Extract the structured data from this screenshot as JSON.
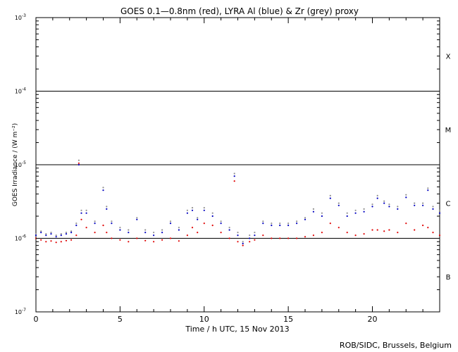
{
  "chart_data": {
    "type": "scatter",
    "title": "GOES 0.1—0.8nm (red), LYRA Al (blue) & Zr (grey) proxy",
    "xlabel": "Time / h UTC, 15 Nov 2013",
    "ylabel": "GOES Irradiance / (W m⁻²)",
    "xlim": [
      0,
      24
    ],
    "ylim": [
      1e-07,
      0.001
    ],
    "yscale": "log",
    "x_ticks": [
      0,
      5,
      10,
      15,
      20
    ],
    "y_ticks": [
      {
        "value": 1e-07,
        "base": "10",
        "exp": "-7"
      },
      {
        "value": 1e-06,
        "base": "10",
        "exp": "-6"
      },
      {
        "value": 1e-05,
        "base": "10",
        "exp": "-5"
      },
      {
        "value": 0.0001,
        "base": "10",
        "exp": "-4"
      },
      {
        "value": 0.001,
        "base": "10",
        "exp": "-3"
      }
    ],
    "flare_class_lines": [
      1e-06,
      1e-05,
      0.0001
    ],
    "flare_classes": [
      {
        "label": "X",
        "y": 0.0003
      },
      {
        "label": "M",
        "y": 3e-05
      },
      {
        "label": "C",
        "y": 3e-06
      },
      {
        "label": "B",
        "y": 3e-07
      }
    ],
    "series": [
      {
        "name": "GOES 0.1—0.8nm",
        "color": "#e00000",
        "x": [
          0.0,
          0.3,
          0.6,
          0.9,
          1.2,
          1.5,
          1.8,
          2.1,
          2.4,
          2.55,
          2.7,
          3.0,
          3.5,
          4.0,
          4.2,
          4.5,
          5.0,
          5.5,
          6.0,
          6.5,
          7.0,
          7.5,
          8.0,
          8.5,
          9.0,
          9.3,
          9.6,
          10.0,
          10.5,
          11.0,
          11.5,
          11.8,
          12.0,
          12.3,
          12.7,
          13.0,
          13.5,
          14.0,
          14.5,
          15.0,
          15.5,
          16.0,
          16.5,
          17.0,
          17.5,
          18.0,
          18.5,
          19.0,
          19.5,
          20.0,
          20.3,
          20.7,
          21.0,
          21.5,
          22.0,
          22.5,
          23.0,
          23.3,
          23.6,
          24.0
        ],
        "y": [
          1e-06,
          9.5e-07,
          9e-07,
          9.2e-07,
          8.8e-07,
          9e-07,
          9.3e-07,
          9.5e-07,
          1.1e-06,
          1.05e-05,
          1.8e-06,
          1.4e-06,
          1.2e-06,
          1.5e-06,
          1.2e-06,
          1e-06,
          9.5e-07,
          9e-07,
          1e-06,
          9.3e-07,
          9e-07,
          9.5e-07,
          1e-06,
          9.2e-07,
          1.1e-06,
          1.4e-06,
          1.2e-06,
          1.6e-06,
          1.5e-06,
          1.2e-06,
          1e-06,
          6e-06,
          9e-07,
          8e-07,
          9e-07,
          9.5e-07,
          1.1e-06,
          1e-06,
          1e-06,
          1e-06,
          1e-06,
          1.05e-06,
          1.1e-06,
          1.2e-06,
          1.6e-06,
          1.4e-06,
          1.2e-06,
          1.1e-06,
          1.15e-06,
          1.3e-06,
          1.3e-06,
          1.25e-06,
          1.3e-06,
          1.2e-06,
          1.6e-06,
          1.3e-06,
          1.5e-06,
          1.4e-06,
          1.2e-06,
          1.1e-06
        ]
      },
      {
        "name": "LYRA Al",
        "color": "#0000c0",
        "x": [
          0.0,
          0.3,
          0.6,
          0.9,
          1.2,
          1.5,
          1.8,
          2.1,
          2.4,
          2.55,
          2.7,
          3.0,
          3.5,
          4.0,
          4.2,
          4.5,
          5.0,
          5.5,
          6.0,
          6.5,
          7.0,
          7.5,
          8.0,
          8.5,
          9.0,
          9.3,
          9.6,
          10.0,
          10.5,
          11.0,
          11.5,
          11.8,
          12.0,
          12.3,
          12.7,
          13.0,
          13.5,
          14.0,
          14.5,
          15.0,
          15.5,
          16.0,
          16.5,
          17.0,
          17.5,
          18.0,
          18.5,
          19.0,
          19.5,
          20.0,
          20.3,
          20.7,
          21.0,
          21.5,
          22.0,
          22.5,
          23.0,
          23.3,
          23.6,
          24.0
        ],
        "y": [
          1.1e-06,
          1.2e-06,
          1.1e-06,
          1.15e-06,
          1.05e-06,
          1.1e-06,
          1.15e-06,
          1.2e-06,
          1.5e-06,
          1e-05,
          2.2e-06,
          2.2e-06,
          1.6e-06,
          4.5e-06,
          2.5e-06,
          1.6e-06,
          1.3e-06,
          1.2e-06,
          1.8e-06,
          1.2e-06,
          1.1e-06,
          1.2e-06,
          1.6e-06,
          1.3e-06,
          2.2e-06,
          2.4e-06,
          1.8e-06,
          2.4e-06,
          2e-06,
          1.6e-06,
          1.3e-06,
          7e-06,
          1.1e-06,
          8.5e-07,
          1e-06,
          1.1e-06,
          1.6e-06,
          1.5e-06,
          1.5e-06,
          1.5e-06,
          1.6e-06,
          1.8e-06,
          2.3e-06,
          2e-06,
          3.5e-06,
          2.8e-06,
          2e-06,
          2.2e-06,
          2.3e-06,
          2.7e-06,
          3.5e-06,
          3e-06,
          2.7e-06,
          2.5e-06,
          3.6e-06,
          2.8e-06,
          2.8e-06,
          4.5e-06,
          2.5e-06,
          2.2e-06
        ]
      },
      {
        "name": "Zr",
        "color": "#909090",
        "x": [
          0.0,
          0.3,
          0.6,
          0.9,
          1.2,
          1.5,
          1.8,
          2.1,
          2.4,
          2.55,
          2.7,
          3.0,
          3.5,
          4.0,
          4.2,
          4.5,
          5.0,
          5.5,
          6.0,
          6.5,
          7.0,
          7.5,
          8.0,
          8.5,
          9.0,
          9.3,
          9.6,
          10.0,
          10.5,
          11.0,
          11.5,
          11.8,
          12.0,
          12.3,
          12.7,
          13.0,
          13.5,
          14.0,
          14.5,
          15.0,
          15.5,
          16.0,
          16.5,
          17.0,
          17.5,
          18.0,
          18.5,
          19.0,
          19.5,
          20.0,
          20.3,
          20.7,
          21.0,
          21.5,
          22.0,
          22.5,
          23.0,
          23.3,
          23.6,
          24.0
        ],
        "y": [
          1.15e-06,
          1.25e-06,
          1.15e-06,
          1.2e-06,
          1.1e-06,
          1.15e-06,
          1.2e-06,
          1.25e-06,
          1.6e-06,
          1.15e-05,
          2.4e-06,
          2.4e-06,
          1.7e-06,
          4.9e-06,
          2.7e-06,
          1.7e-06,
          1.4e-06,
          1.3e-06,
          1.9e-06,
          1.3e-06,
          1.2e-06,
          1.3e-06,
          1.7e-06,
          1.4e-06,
          2.4e-06,
          2.6e-06,
          1.9e-06,
          2.6e-06,
          2.2e-06,
          1.7e-06,
          1.4e-06,
          7.6e-06,
          1.2e-06,
          9e-07,
          1.1e-06,
          1.2e-06,
          1.7e-06,
          1.6e-06,
          1.6e-06,
          1.6e-06,
          1.7e-06,
          1.9e-06,
          2.5e-06,
          2.2e-06,
          3.8e-06,
          3e-06,
          2.2e-06,
          2.4e-06,
          2.5e-06,
          2.9e-06,
          3.8e-06,
          3.2e-06,
          2.9e-06,
          2.7e-06,
          3.9e-06,
          3e-06,
          3e-06,
          4.8e-06,
          2.7e-06,
          2.4e-06
        ]
      }
    ],
    "credit": "ROB/SIDC, Brussels, Belgium"
  }
}
